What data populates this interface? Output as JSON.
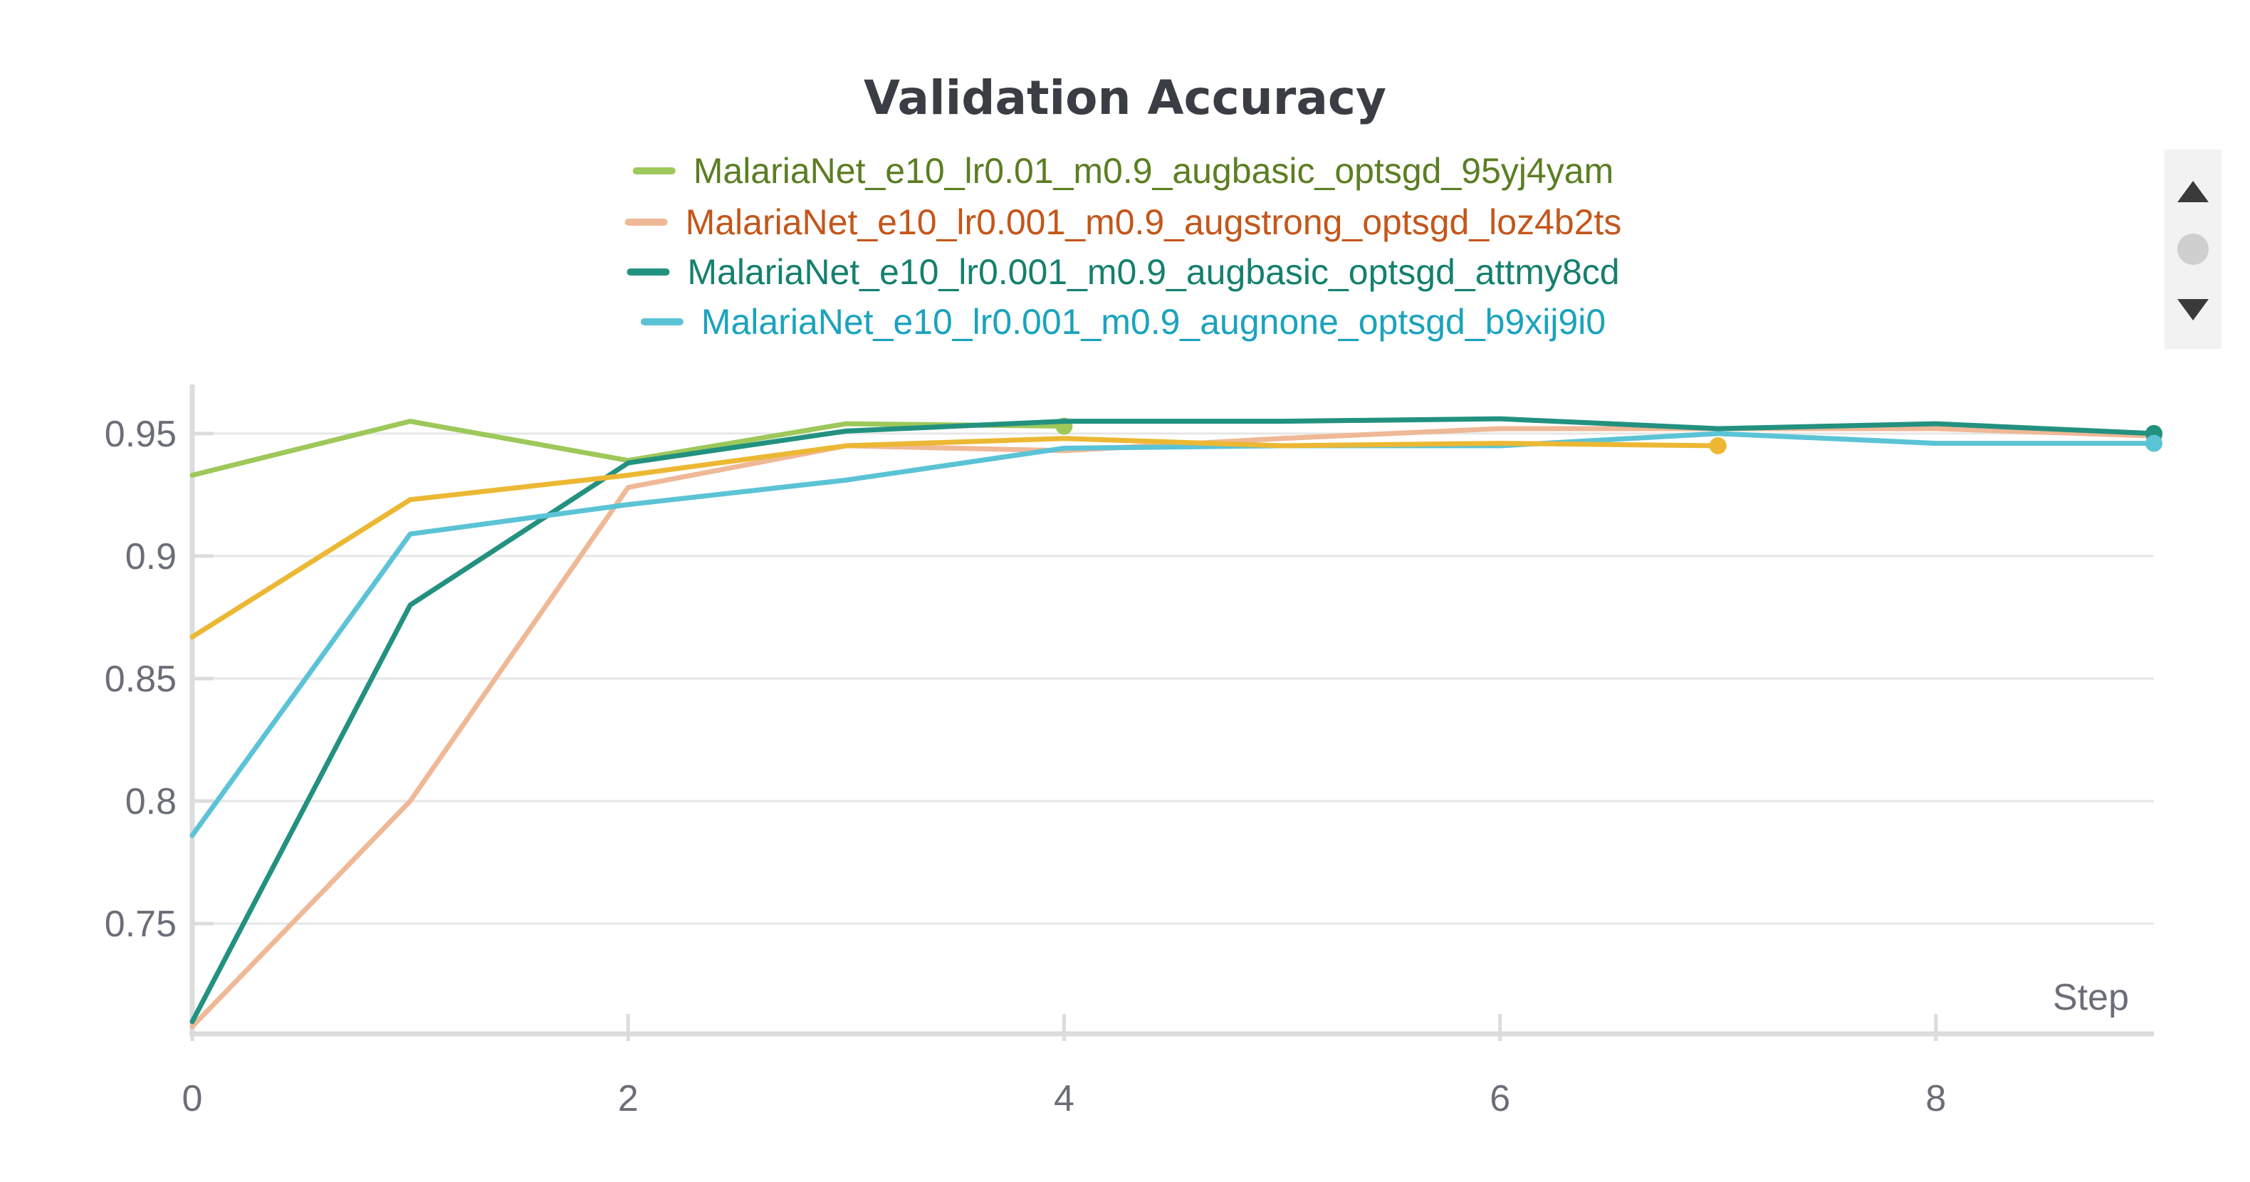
{
  "chart_data": {
    "type": "line",
    "title": "Validation Accuracy",
    "xlabel": "Step",
    "ylabel": "",
    "xlim": [
      0,
      9
    ],
    "ylim": [
      0.705,
      0.97
    ],
    "xticks": [
      0,
      2,
      4,
      6,
      8
    ],
    "yticks": [
      0.75,
      0.8,
      0.85,
      0.9,
      0.95
    ],
    "ytick_labels": [
      "0.75",
      "0.8",
      "0.85",
      "0.9",
      "0.95"
    ],
    "grid": true,
    "legend_position": "top-center",
    "series": [
      {
        "name": "MalariaNet_e10_lr0.01_m0.9_augbasic_optsgd_95yj4yam",
        "color": "#9dc85a",
        "legend_text_color": "#5b7e22",
        "show_in_legend": true,
        "x": [
          0,
          1,
          2,
          3,
          4
        ],
        "y": [
          0.933,
          0.955,
          0.939,
          0.954,
          0.953
        ]
      },
      {
        "name": "MalariaNet_e10_lr0.001_m0.9_augstrong_optsgd_loz4b2ts",
        "color": "#efb896",
        "legend_text_color": "#c4561a",
        "show_in_legend": true,
        "x": [
          0,
          1,
          2,
          3,
          4,
          5,
          6,
          7,
          8,
          9
        ],
        "y": [
          0.708,
          0.8,
          0.928,
          0.945,
          0.943,
          0.948,
          0.952,
          0.952,
          0.952,
          0.949
        ]
      },
      {
        "name": "MalariaNet_e10_lr0.001_m0.9_augbasic_optsgd_attmy8cd",
        "color": "#239180",
        "legend_text_color": "#15806e",
        "show_in_legend": true,
        "x": [
          0,
          1,
          2,
          3,
          4,
          5,
          6,
          7,
          8,
          9
        ],
        "y": [
          0.71,
          0.88,
          0.938,
          0.951,
          0.955,
          0.955,
          0.956,
          0.952,
          0.954,
          0.95
        ]
      },
      {
        "name": "MalariaNet_e10_lr0.001_m0.9_augnone_optsgd_b9xij9i0",
        "color": "#5bc3d6",
        "legend_text_color": "#1aa3bd",
        "show_in_legend": true,
        "x": [
          0,
          1,
          2,
          3,
          4,
          5,
          6,
          7,
          8,
          9
        ],
        "y": [
          0.786,
          0.909,
          0.921,
          0.931,
          0.944,
          0.945,
          0.945,
          0.95,
          0.946,
          0.946
        ]
      },
      {
        "name": "",
        "color": "#ecb833",
        "legend_text_color": "#ecb833",
        "show_in_legend": false,
        "x": [
          0,
          1,
          2,
          3,
          4,
          5,
          6,
          7
        ],
        "y": [
          0.867,
          0.923,
          0.933,
          0.945,
          0.948,
          0.945,
          0.946,
          0.945
        ]
      }
    ]
  },
  "legend_scroll": {
    "up_icon": "triangle-up-icon",
    "thumb_icon": "scroll-thumb-icon",
    "down_icon": "triangle-down-icon"
  }
}
